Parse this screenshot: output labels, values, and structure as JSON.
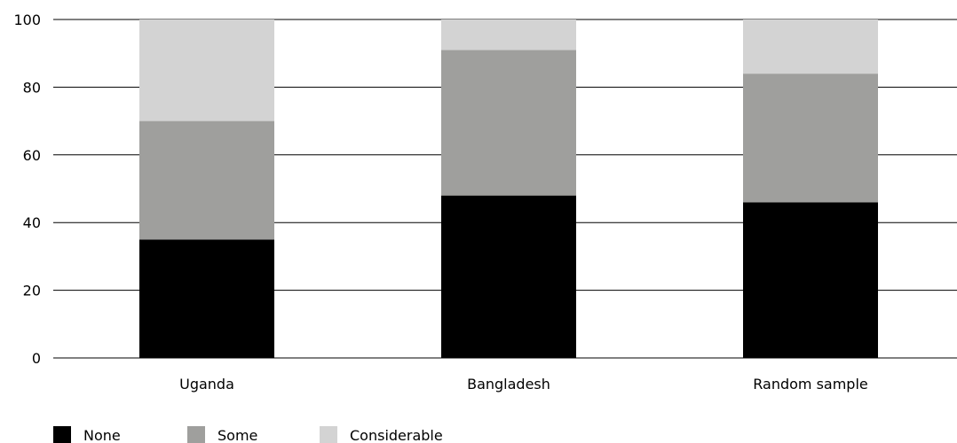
{
  "chart_data": {
    "type": "bar",
    "stacked": true,
    "categories": [
      "Uganda",
      "Bangladesh",
      "Random sample"
    ],
    "series": [
      {
        "name": "None",
        "values": [
          35,
          48,
          46
        ],
        "color": "#000000"
      },
      {
        "name": "Some",
        "values": [
          35,
          43,
          38
        ],
        "color": "#9f9f9d"
      },
      {
        "name": "Considerable",
        "values": [
          30,
          9,
          16
        ],
        "color": "#d3d3d3"
      }
    ],
    "title": "",
    "xlabel": "",
    "ylabel": "",
    "ylim": [
      0,
      100
    ],
    "yticks": [
      "0",
      "20",
      "40",
      "60",
      "80",
      "100"
    ],
    "grid": true,
    "legend_position": "bottom-left"
  }
}
